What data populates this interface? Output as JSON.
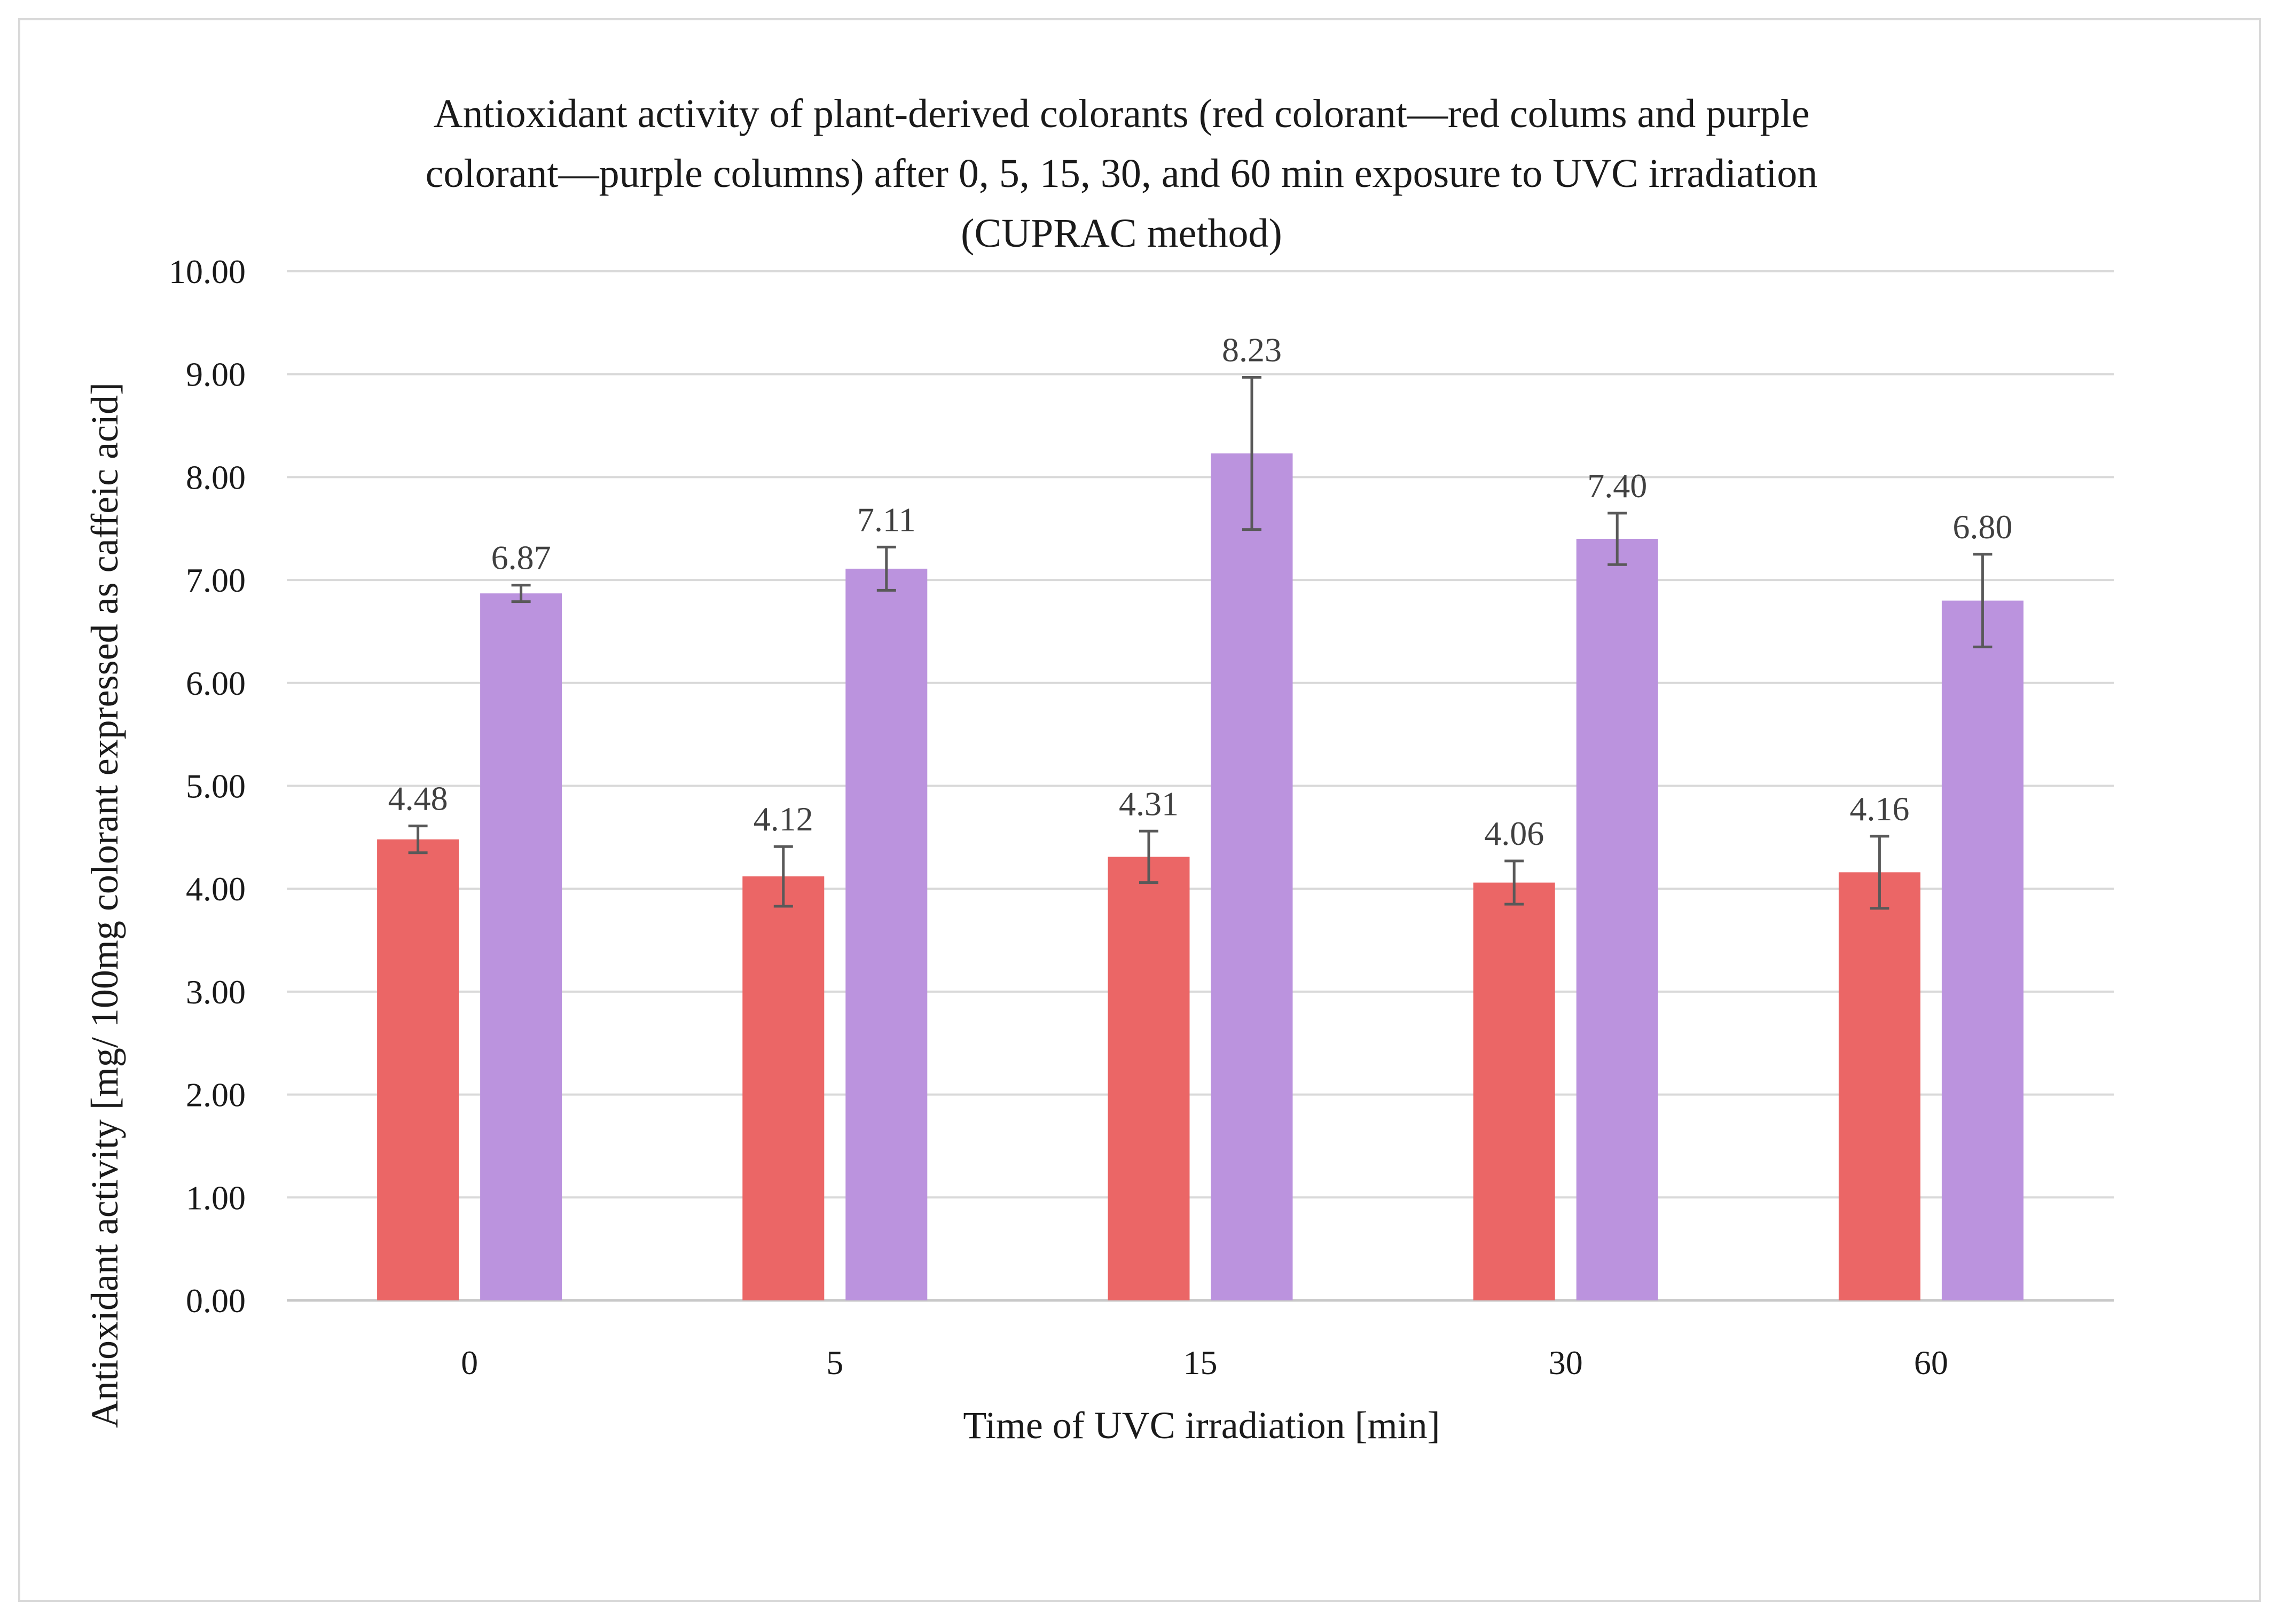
{
  "chart_data": {
    "type": "bar",
    "title_lines": [
      "Antioxidant activity of plant-derived colorants (red colorant—red colums and purple",
      "colorant—purple columns) after 0, 5, 15, 30, and 60 min exposure to UVC irradiation",
      "(CUPRAC method)"
    ],
    "xlabel": "Time of UVC irradiation [min]",
    "ylabel": "Antioxidant activity [mg/ 100mg colorant expressed as caffeic acid]",
    "categories": [
      "0",
      "5",
      "15",
      "30",
      "60"
    ],
    "ylim": [
      0,
      10
    ],
    "ytick_step": 1,
    "ytick_labels": [
      "0.00",
      "1.00",
      "2.00",
      "3.00",
      "4.00",
      "5.00",
      "6.00",
      "7.00",
      "8.00",
      "9.00",
      "10.00"
    ],
    "grid": true,
    "legend": "none",
    "series": [
      {
        "color": "#eb6666",
        "values": [
          4.48,
          4.12,
          4.31,
          4.06,
          4.16
        ],
        "value_labels": [
          "4.48",
          "4.12",
          "4.31",
          "4.06",
          "4.16"
        ],
        "errors": [
          0.13,
          0.29,
          0.25,
          0.21,
          0.35
        ]
      },
      {
        "color": "#bb93de",
        "values": [
          6.87,
          7.11,
          8.23,
          7.4,
          6.8
        ],
        "value_labels": [
          "6.87",
          "7.11",
          "8.23",
          "7.40",
          "6.80"
        ],
        "errors": [
          0.08,
          0.21,
          0.74,
          0.25,
          0.45
        ]
      }
    ]
  }
}
